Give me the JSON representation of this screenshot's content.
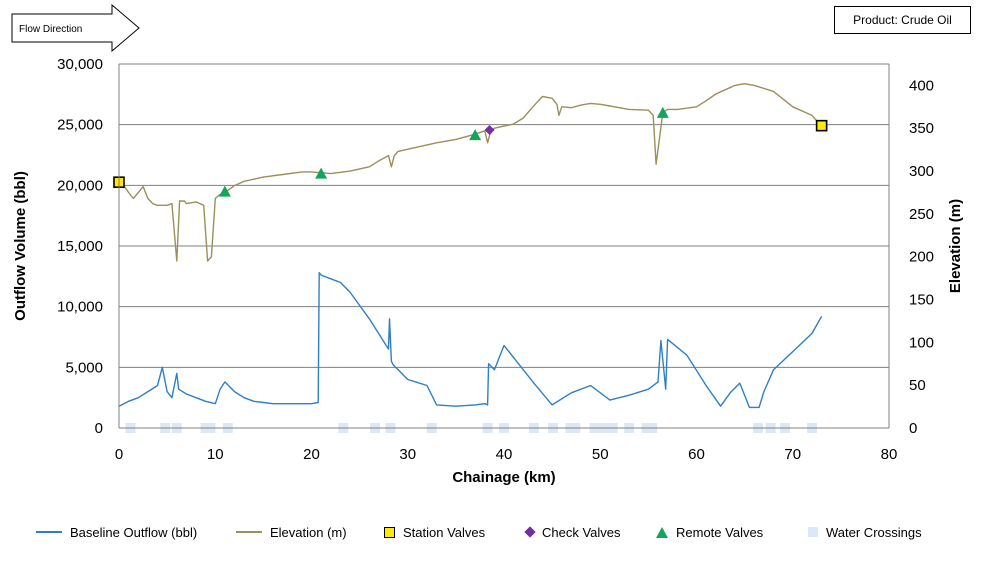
{
  "flow_label": "Flow Direction",
  "product_label": "Product: Crude Oil",
  "colors": {
    "outflow": "#2f7fc4",
    "elevation": "#9b8f5a",
    "station": "#ffea00",
    "check": "#7030a0",
    "remote": "#13a55b",
    "crossing": "#dce9f5",
    "grid": "#808080"
  },
  "chart_data": {
    "type": "line",
    "title": "",
    "xlabel": "Chainage (km)",
    "ylabel": "Outflow Volume (bbl)",
    "y2label": "Elevation (m)",
    "xlim": [
      0,
      80
    ],
    "ylim": [
      0,
      30000
    ],
    "y2lim": [
      0,
      425
    ],
    "x_ticks": [
      "0",
      "10",
      "20",
      "30",
      "40",
      "50",
      "60",
      "70",
      "80"
    ],
    "y_ticks": [
      "0",
      "5,000",
      "10,000",
      "15,000",
      "20,000",
      "25,000",
      "30,000"
    ],
    "y2_ticks": [
      "0",
      "50",
      "100",
      "150",
      "200",
      "250",
      "300",
      "350",
      "400"
    ],
    "legend": {
      "outflow": "Baseline Outflow (bbl)",
      "elevation": "Elevation (m)",
      "station": "Station Valves",
      "check": "Check Valves",
      "remote": "Remote Valves",
      "crossing": "Water Crossings"
    },
    "series": [
      {
        "name": "Baseline Outflow (bbl)",
        "axis": "left",
        "x": [
          0,
          0.5,
          1,
          2,
          3,
          4,
          4.5,
          5,
          5.5,
          6,
          6.2,
          7,
          8,
          9,
          10,
          10.5,
          11,
          12,
          13,
          14,
          15,
          16,
          17,
          18,
          19,
          20,
          20.7,
          20.8,
          21,
          22,
          23,
          24,
          26,
          28,
          28.1,
          28.3,
          28.5,
          30,
          32,
          33,
          35,
          37,
          38,
          38.3,
          38.4,
          39,
          40,
          41,
          43,
          45,
          47,
          49,
          51,
          53,
          55,
          56,
          56.3,
          56.8,
          57,
          59,
          61,
          62.5,
          63.5,
          64.5,
          65.5,
          66.5,
          67,
          68,
          70,
          72,
          73
        ],
        "y": [
          1800,
          2000,
          2200,
          2500,
          3000,
          3500,
          5000,
          3000,
          2500,
          4500,
          3200,
          2800,
          2500,
          2200,
          2000,
          3200,
          3800,
          3000,
          2500,
          2200,
          2100,
          2000,
          2000,
          2000,
          2000,
          2000,
          2100,
          12800,
          12600,
          12300,
          12000,
          11200,
          9000,
          6500,
          9000,
          5500,
          5200,
          4000,
          3500,
          1900,
          1800,
          1900,
          2000,
          1900,
          5300,
          4800,
          6800,
          5800,
          3800,
          1900,
          2900,
          3500,
          2300,
          2700,
          3200,
          3800,
          7200,
          3200,
          7300,
          6000,
          3500,
          1800,
          2900,
          3700,
          1700,
          1700,
          3000,
          4800,
          6300,
          7800,
          9200
        ]
      },
      {
        "name": "Elevation (m)",
        "axis": "right",
        "x": [
          0,
          0.5,
          1,
          1.5,
          2,
          2.5,
          3,
          3.5,
          4,
          5,
          5.5,
          6,
          6.3,
          6.8,
          7,
          8,
          8.8,
          9.2,
          9.6,
          10,
          10.4,
          11,
          12,
          13,
          15,
          17,
          19,
          20,
          22,
          24,
          26,
          27,
          28,
          28.3,
          28.6,
          29,
          31,
          33,
          35,
          37,
          38,
          38.3,
          38.6,
          39,
          41,
          42,
          43,
          44,
          45,
          45.5,
          45.7,
          46,
          47,
          48,
          49,
          50,
          51,
          52,
          53,
          55,
          55.5,
          55.8,
          56.5,
          57,
          58,
          60,
          61,
          62,
          63,
          64,
          65,
          66,
          68,
          70,
          72,
          73
        ],
        "y": [
          285,
          283,
          275,
          268,
          275,
          282,
          268,
          262,
          260,
          260,
          262,
          195,
          265,
          265,
          262,
          264,
          260,
          195,
          200,
          268,
          272,
          275,
          283,
          288,
          293,
          296,
          299,
          299,
          297,
          300,
          305,
          312,
          318,
          305,
          318,
          323,
          328,
          333,
          337,
          343,
          347,
          333,
          346,
          350,
          355,
          362,
          375,
          387,
          385,
          378,
          365,
          375,
          374,
          377,
          379,
          378,
          376,
          374,
          372,
          371,
          365,
          308,
          368,
          372,
          372,
          375,
          382,
          390,
          395,
          400,
          402,
          400,
          393,
          375,
          365,
          352
        ]
      }
    ],
    "markers": {
      "station_valves": {
        "x": [
          0,
          73
        ],
        "y": [
          287,
          353
        ]
      },
      "check_valves": {
        "x": [
          38.5
        ],
        "y": [
          348
        ]
      },
      "remote_valves": {
        "x": [
          11,
          21,
          37,
          56.5
        ],
        "y": [
          276,
          297,
          342,
          368
        ]
      },
      "water_crossings": {
        "x": [
          1.2,
          4.8,
          6,
          9,
          9.5,
          11.3,
          23.3,
          26.6,
          28.2,
          32.5,
          38.3,
          40,
          43.1,
          45.1,
          46.9,
          47.4,
          49.4,
          50.4,
          51.3,
          53,
          54.8,
          55.4,
          66.4,
          67.7,
          69.2,
          72
        ]
      }
    }
  }
}
